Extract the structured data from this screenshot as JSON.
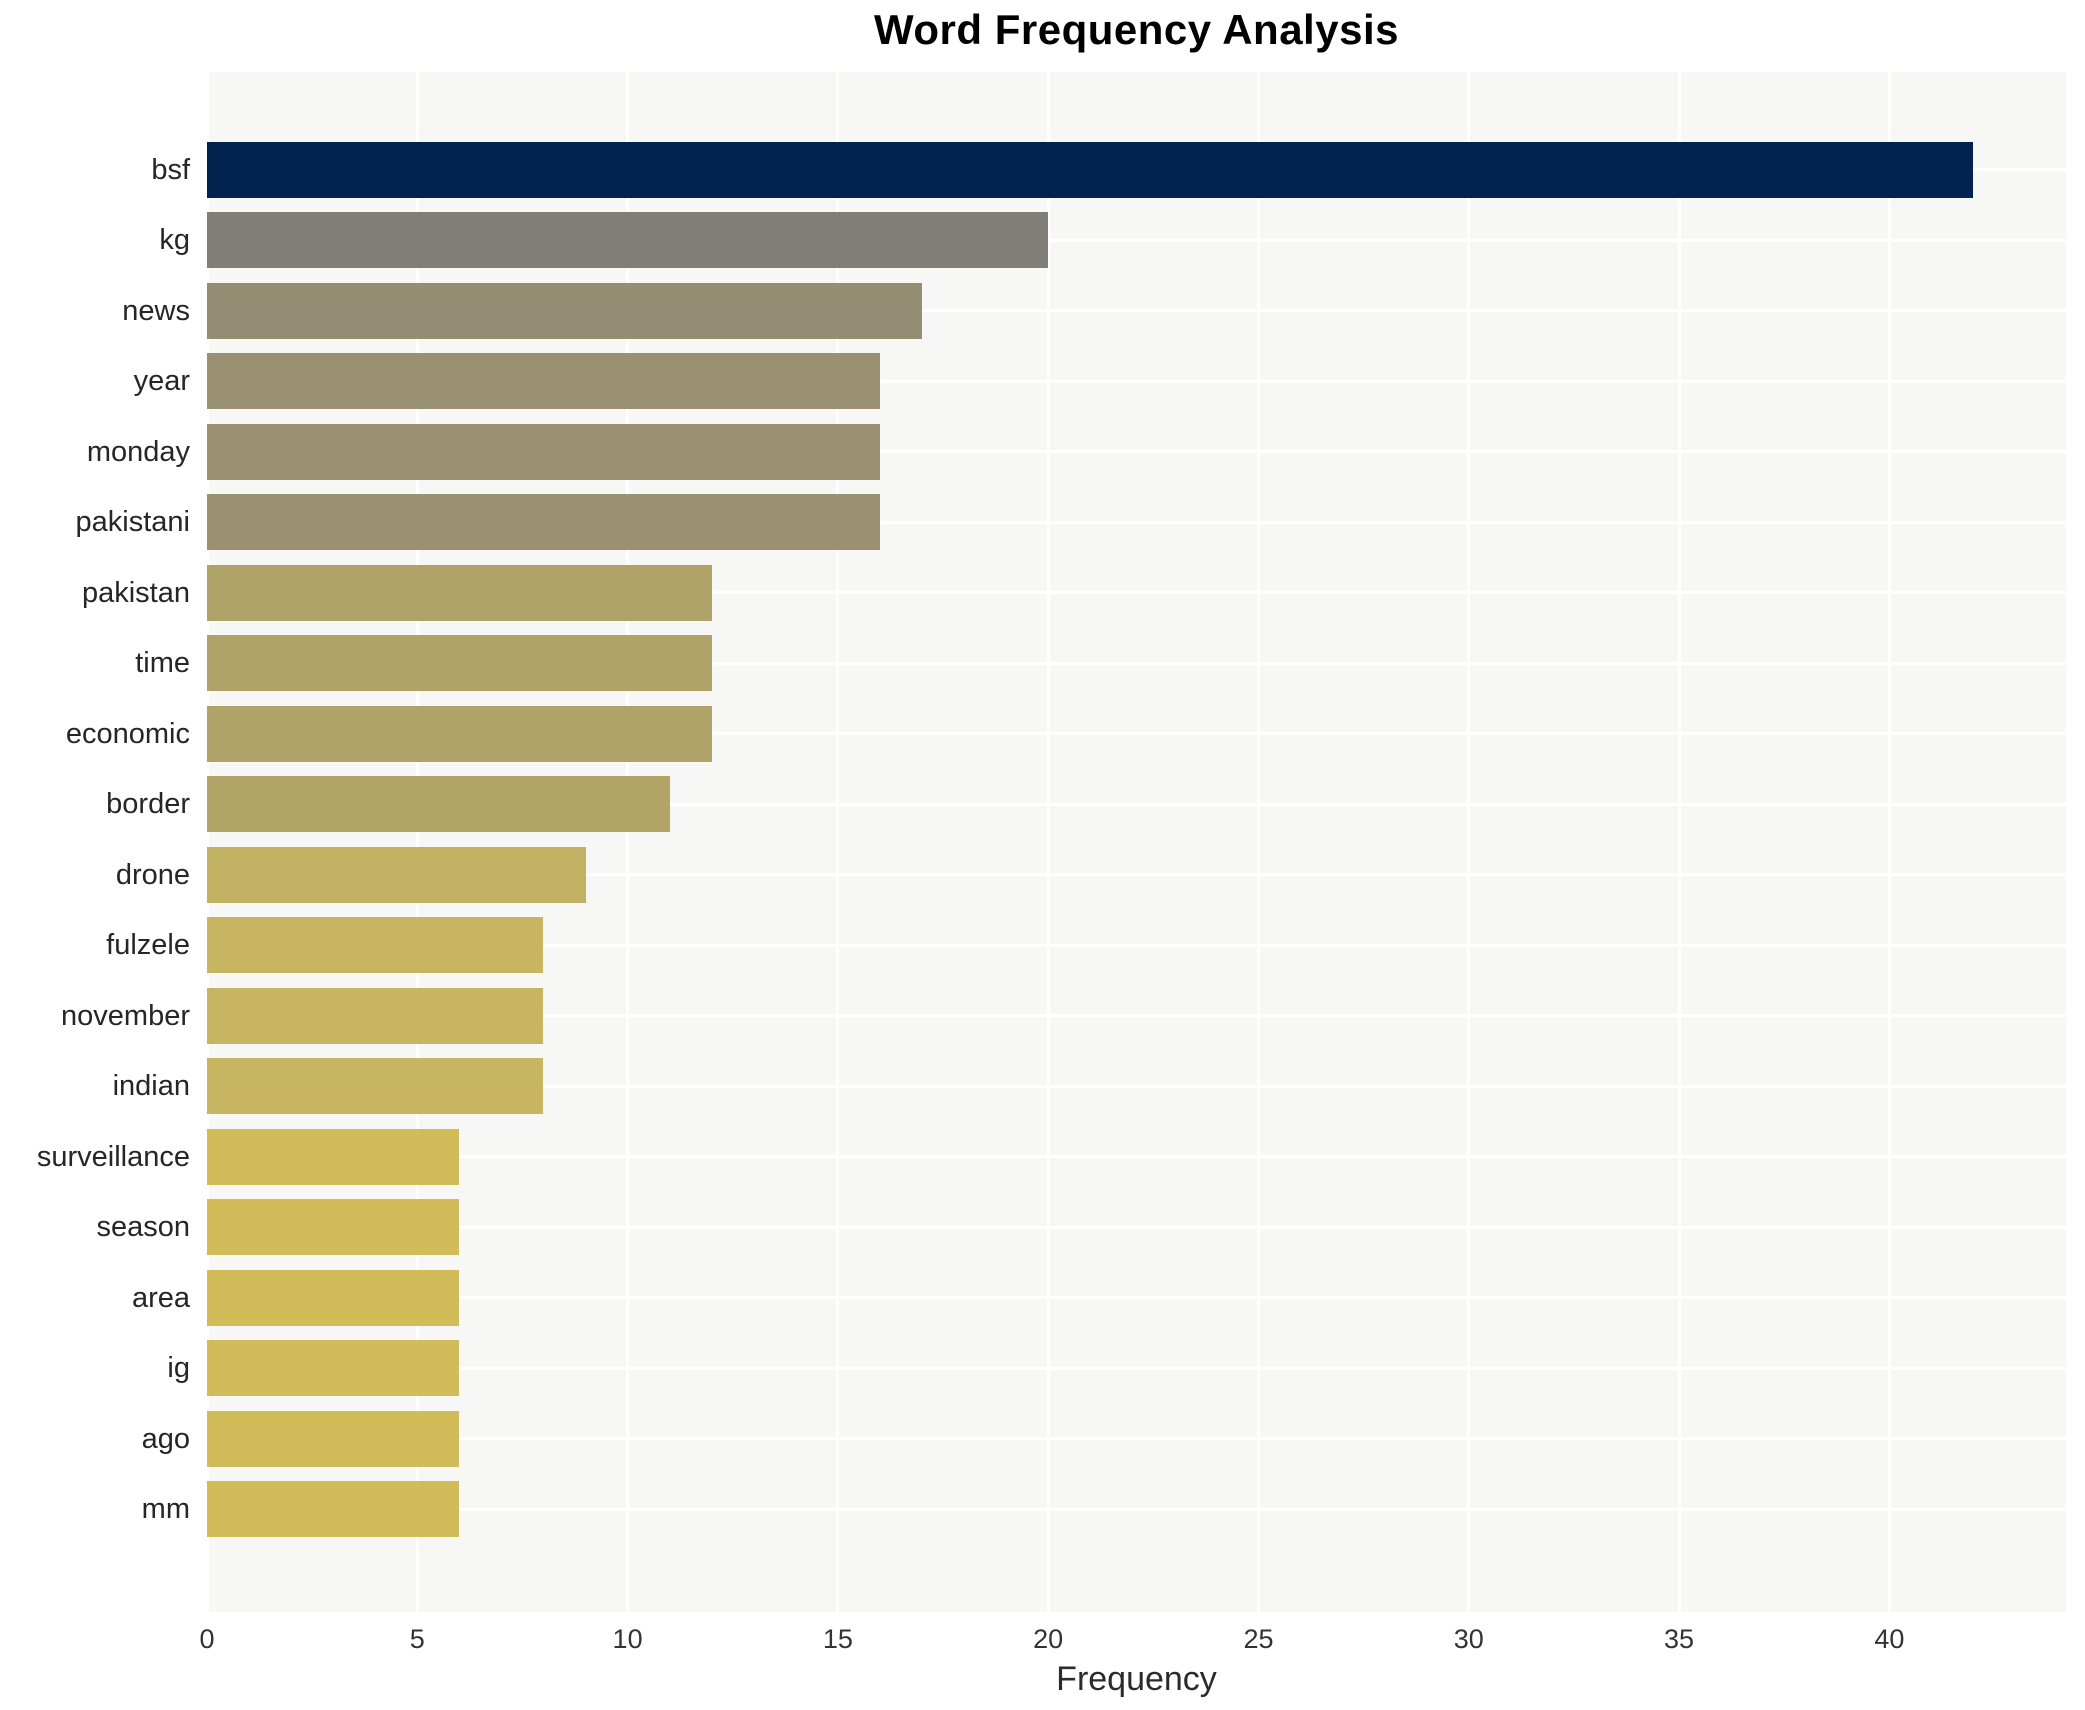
{
  "title": "Word Frequency Analysis",
  "colors": {
    "page_bg": "#ffffff",
    "plot_bg": "#f7f7f6",
    "grid": "#ffffff",
    "title_text": "#000000",
    "tick_text": "#333333",
    "label_text": "#262626",
    "axis_label_text": "#2b2b2b",
    "bar_max": "#022350",
    "bar_min": "#d2bc59"
  },
  "chart_data": {
    "type": "bar",
    "orientation": "horizontal",
    "title": "Word Frequency Analysis",
    "xlabel": "Frequency",
    "ylabel": "",
    "xlim": [
      0,
      44.2
    ],
    "xticks": [
      0,
      5,
      10,
      15,
      20,
      25,
      30,
      35,
      40
    ],
    "grid": true,
    "legend": false,
    "categories": [
      "bsf",
      "kg",
      "news",
      "year",
      "monday",
      "pakistani",
      "pakistan",
      "time",
      "economic",
      "border",
      "drone",
      "fulzele",
      "november",
      "indian",
      "surveillance",
      "season",
      "area",
      "ig",
      "ago",
      "mm"
    ],
    "values": [
      42,
      20,
      17,
      16,
      16,
      16,
      12,
      12,
      12,
      11,
      9,
      8,
      8,
      8,
      6,
      6,
      6,
      6,
      6,
      6
    ],
    "bar_colors": [
      "#022350",
      "#817e77",
      "#958e74",
      "#9a9173",
      "#9a9173",
      "#9a9173",
      "#b0a369",
      "#b0a369",
      "#b0a369",
      "#b3a567",
      "#c2b163",
      "#c8b562",
      "#c8b562",
      "#c8b562",
      "#d2bc59",
      "#d2bc59",
      "#d2bc59",
      "#d2bc59",
      "#d2bc59",
      "#d2bc59"
    ]
  }
}
